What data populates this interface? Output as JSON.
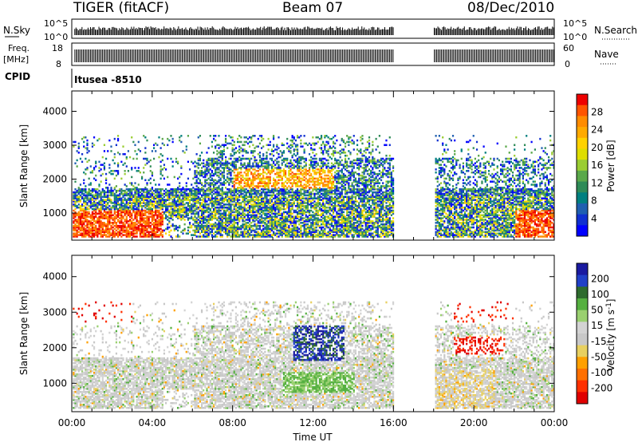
{
  "header": {
    "station_title": "TIGER (fitACF)",
    "beam_title": "Beam 07",
    "date_title": "08/Dec/2010"
  },
  "param_panels": {
    "nsky_label": "N.Sky",
    "nsky_ticks": [
      "10^5",
      "10^0"
    ],
    "nsearch_label": "N.Search",
    "nsearch_ticks": [
      "10^5",
      "10^0"
    ],
    "freq_label": "Freq.",
    "freq_unit": "[MHz]",
    "freq_ticks": [
      "18",
      "8"
    ],
    "nave_label": "Nave",
    "nave_ticks": [
      "60",
      "0"
    ],
    "cpid_label": "CPID",
    "cpid_value": "Itusea  -8510"
  },
  "chart_data": [
    {
      "type": "heatmap",
      "name": "power",
      "ylabel": "Slant Range [km]",
      "ylim": [
        200,
        4600
      ],
      "yticks": [
        "1000",
        "2000",
        "3000",
        "4000"
      ],
      "xlim": [
        "00:00",
        "24:00"
      ],
      "data_gap": [
        "16:00",
        "18:00"
      ],
      "colorbar": {
        "label": "Power [dB]",
        "ticks": [
          "28",
          "24",
          "20",
          "16",
          "12",
          "8",
          "4"
        ],
        "colors": [
          "#ee0000",
          "#ff5500",
          "#ff8c00",
          "#ffaa00",
          "#ffd200",
          "#dede00",
          "#9acd32",
          "#5aa84a",
          "#2e8b57",
          "#008080",
          "#1f5fb0",
          "#1030d0",
          "#0000ff"
        ]
      }
    },
    {
      "type": "heatmap",
      "name": "velocity",
      "ylabel": "Slant Range [km]",
      "ylim": [
        200,
        4600
      ],
      "yticks": [
        "1000",
        "2000",
        "3000",
        "4000"
      ],
      "xlim": [
        "00:00",
        "24:00"
      ],
      "xticks": [
        "00:00",
        "04:00",
        "08:00",
        "12:00",
        "16:00",
        "20:00",
        "00:00"
      ],
      "xlabel": "Time UT",
      "data_gap": [
        "16:00",
        "18:00"
      ],
      "colorbar": {
        "label": "Velocity [m s^-1]",
        "ticks": [
          "200",
          "100",
          "50",
          "15",
          "-15",
          "-50",
          "-100",
          "-200"
        ],
        "colors": [
          "#1a1aa0",
          "#2040c8",
          "#2e6b2e",
          "#55b040",
          "#9ad070",
          "#d3d3d3",
          "#c8c8c8",
          "#e8d060",
          "#ffa000",
          "#ff7000",
          "#ff3000",
          "#e00000"
        ]
      }
    }
  ],
  "axis_labels": {
    "slant_range_top": "Slant Range [km]",
    "slant_range_bottom": "Slant Range [km]",
    "time_ut": "Time UT",
    "power_cbar": "Power [dB]",
    "velocity_cbar": "Velocity [m s",
    "velocity_cbar_exp": "-1",
    "velocity_cbar_end": "]"
  }
}
